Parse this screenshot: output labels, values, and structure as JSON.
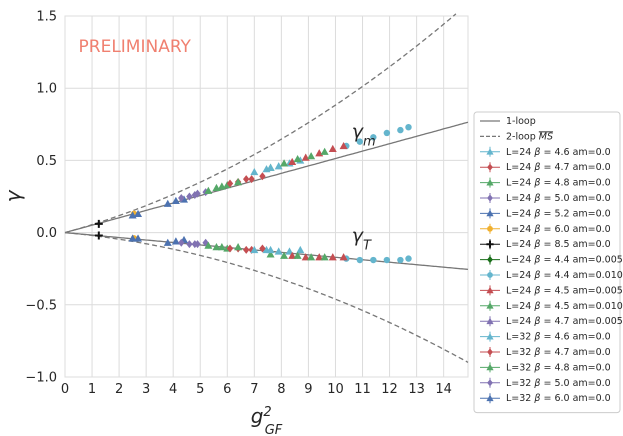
{
  "chart_data": {
    "type": "scatter",
    "title": "",
    "xlabel": "g²_GF",
    "ylabel": "γ",
    "xlim": [
      0,
      14.9
    ],
    "ylim": [
      -1.0,
      1.5
    ],
    "xticks": [
      "0",
      "1",
      "2",
      "3",
      "4",
      "5",
      "6",
      "7",
      "8",
      "9",
      "10",
      "11",
      "12",
      "13",
      "14"
    ],
    "yticks": [
      "1.5",
      "1.0",
      "0.5",
      "0.0",
      "−0.5",
      "−1.0"
    ],
    "grid": true,
    "legend_position": "right",
    "watermark": "PRELIMINARY",
    "annotations": [
      {
        "label_main": "γ",
        "label_sub": "m",
        "x": 10.6,
        "y": 0.66
      },
      {
        "label_main": "γ",
        "label_sub": "T",
        "x": 10.6,
        "y": -0.06
      }
    ],
    "reference_lines": [
      {
        "name": "1-loop",
        "style": "solid",
        "gamma_m_slope": 0.0513,
        "gamma_T_slope": -0.0171
      },
      {
        "name": "2-loop MS",
        "name_main": "2-loop ",
        "name_over": "MS",
        "style": "dashed",
        "gamma_m_quadratic": [
          0.0513,
          0.0037
        ],
        "gamma_T_quadratic": [
          -0.0171,
          -0.0029
        ]
      }
    ],
    "series": [
      {
        "name": "L=24 β = 4.6 am=0.0",
        "prefix": "L=24 ",
        "beta": "β",
        "suffix": " = 4.6 am=0.0",
        "color": "#64b5cd",
        "marker": "triangle",
        "m": [
          [
            7.45,
            0.44
          ],
          [
            7.9,
            0.46
          ],
          [
            8.3,
            0.48
          ],
          [
            8.7,
            0.5
          ]
        ],
        "T": [
          [
            7.45,
            -0.12
          ],
          [
            7.9,
            -0.13
          ],
          [
            8.3,
            -0.13
          ],
          [
            8.7,
            -0.12
          ]
        ]
      },
      {
        "name": "L=24 β = 4.7 am=0.0",
        "prefix": "L=24 ",
        "beta": "β",
        "suffix": " = 4.7 am=0.0",
        "color": "#c44e52",
        "marker": "diamond",
        "m": [
          [
            6.4,
            0.35
          ],
          [
            6.9,
            0.37
          ],
          [
            7.3,
            0.39
          ]
        ],
        "T": [
          [
            6.4,
            -0.11
          ],
          [
            6.9,
            -0.12
          ],
          [
            7.3,
            -0.11
          ]
        ]
      },
      {
        "name": "L=24 β = 4.8 am=0.0",
        "prefix": "L=24 ",
        "beta": "β",
        "suffix": " = 4.8 am=0.0",
        "color": "#55a868",
        "marker": "triangle",
        "m": [
          [
            5.6,
            0.31
          ],
          [
            6.0,
            0.33
          ],
          [
            6.4,
            0.35
          ]
        ],
        "T": [
          [
            5.6,
            -0.1
          ],
          [
            6.0,
            -0.11
          ],
          [
            6.4,
            -0.1
          ]
        ]
      },
      {
        "name": "L=24 β = 5.0 am=0.0",
        "prefix": "L=24 ",
        "beta": "β",
        "suffix": " = 5.0 am=0.0",
        "color": "#8172b2",
        "marker": "diamond",
        "m": [
          [
            4.6,
            0.25
          ],
          [
            4.9,
            0.27
          ],
          [
            5.2,
            0.28
          ]
        ],
        "T": [
          [
            4.6,
            -0.08
          ],
          [
            4.9,
            -0.08
          ],
          [
            5.2,
            -0.07
          ]
        ]
      },
      {
        "name": "L=24 β = 5.2 am=0.0",
        "prefix": "L=24 ",
        "beta": "β",
        "suffix": " = 5.2 am=0.0",
        "color": "#4c72b0",
        "marker": "triangle",
        "m": [
          [
            3.8,
            0.2
          ],
          [
            4.1,
            0.22
          ],
          [
            4.4,
            0.23
          ]
        ],
        "T": [
          [
            3.8,
            -0.07
          ],
          [
            4.1,
            -0.06
          ],
          [
            4.4,
            -0.05
          ]
        ]
      },
      {
        "name": "L=24 β = 6.0 am=0.0",
        "prefix": "L=24 ",
        "beta": "β",
        "suffix": " = 6.0 am=0.0",
        "color": "#f0b030",
        "marker": "circle",
        "m": [
          [
            2.55,
            0.13
          ]
        ],
        "T": [
          [
            2.55,
            -0.04
          ]
        ]
      },
      {
        "name": "L=24 β = 8.5 am=0.0",
        "prefix": "L=24 ",
        "beta": "β",
        "suffix": " = 8.5 am=0.0",
        "color": "#111111",
        "marker": "plus",
        "m": [
          [
            1.25,
            0.06
          ]
        ],
        "T": [
          [
            1.25,
            -0.02
          ]
        ]
      },
      {
        "name": "L=24 β = 4.4 am=0.005",
        "prefix": "L=24 ",
        "beta": "β",
        "suffix": " = 4.4 am=0.005",
        "color": "#1a6e1a",
        "marker": "diamond",
        "m": [],
        "T": []
      },
      {
        "name": "L=24 β = 4.4 am=0.010",
        "prefix": "L=24 ",
        "beta": "β",
        "suffix": " = 4.4 am=0.010",
        "color": "#64b5cd",
        "marker": "circle",
        "m": [
          [
            10.4,
            0.6
          ],
          [
            10.9,
            0.63
          ],
          [
            11.4,
            0.66
          ],
          [
            11.9,
            0.69
          ],
          [
            12.4,
            0.71
          ],
          [
            12.7,
            0.73
          ]
        ],
        "T": [
          [
            10.4,
            -0.18
          ],
          [
            10.9,
            -0.19
          ],
          [
            11.4,
            -0.19
          ],
          [
            11.9,
            -0.19
          ],
          [
            12.4,
            -0.19
          ],
          [
            12.7,
            -0.18
          ]
        ]
      },
      {
        "name": "L=24 β = 4.5 am=0.005",
        "prefix": "L=24 ",
        "beta": "β",
        "suffix": " = 4.5 am=0.005",
        "color": "#c44e52",
        "marker": "triangle",
        "m": [
          [
            8.4,
            0.49
          ],
          [
            8.9,
            0.52
          ],
          [
            9.4,
            0.55
          ],
          [
            9.9,
            0.58
          ],
          [
            10.3,
            0.6
          ]
        ],
        "T": [
          [
            8.4,
            -0.16
          ],
          [
            8.9,
            -0.17
          ],
          [
            9.4,
            -0.17
          ],
          [
            9.9,
            -0.17
          ],
          [
            10.3,
            -0.17
          ]
        ]
      },
      {
        "name": "L=24 β = 4.5 am=0.010",
        "prefix": "L=24 ",
        "beta": "β",
        "suffix": " = 4.5 am=0.010",
        "color": "#55a868",
        "marker": "triangle",
        "m": [
          [
            7.6,
            0.45
          ],
          [
            8.1,
            0.48
          ],
          [
            8.6,
            0.51
          ],
          [
            9.1,
            0.53
          ],
          [
            9.6,
            0.56
          ]
        ],
        "T": [
          [
            7.6,
            -0.15
          ],
          [
            8.1,
            -0.16
          ],
          [
            8.6,
            -0.16
          ],
          [
            9.1,
            -0.17
          ],
          [
            9.6,
            -0.17
          ]
        ]
      },
      {
        "name": "L=24 β = 4.7 am=0.005",
        "prefix": "L=24 ",
        "beta": "β",
        "suffix": " = 4.7 am=0.005",
        "color": "#8172b2",
        "marker": "triangle",
        "m": [],
        "T": []
      },
      {
        "name": "L=32 β = 4.6 am=0.0",
        "prefix": "L=32 ",
        "beta": "β",
        "suffix": " = 4.6 am=0.0",
        "color": "#64b5cd",
        "marker": "triangle",
        "m": [
          [
            7.0,
            0.42
          ],
          [
            7.6,
            0.45
          ]
        ],
        "T": [
          [
            7.0,
            -0.12
          ],
          [
            7.6,
            -0.12
          ]
        ]
      },
      {
        "name": "L=32 β = 4.7 am=0.0",
        "prefix": "L=32 ",
        "beta": "β",
        "suffix": " = 4.7 am=0.0",
        "color": "#c44e52",
        "marker": "diamond",
        "m": [
          [
            6.1,
            0.34
          ],
          [
            6.7,
            0.37
          ]
        ],
        "T": [
          [
            6.1,
            -0.11
          ],
          [
            6.7,
            -0.12
          ]
        ]
      },
      {
        "name": "L=32 β = 4.8 am=0.0",
        "prefix": "L=32 ",
        "beta": "β",
        "suffix": " = 4.8 am=0.0",
        "color": "#55a868",
        "marker": "triangle",
        "m": [
          [
            5.3,
            0.29
          ],
          [
            5.8,
            0.32
          ]
        ],
        "T": [
          [
            5.3,
            -0.09
          ],
          [
            5.8,
            -0.1
          ]
        ]
      },
      {
        "name": "L=32 β = 5.0 am=0.0",
        "prefix": "L=32 ",
        "beta": "β",
        "suffix": " = 5.0 am=0.0",
        "color": "#8172b2",
        "marker": "diamond",
        "m": [
          [
            4.3,
            0.24
          ],
          [
            4.8,
            0.26
          ]
        ],
        "T": [
          [
            4.3,
            -0.07
          ],
          [
            4.8,
            -0.08
          ]
        ]
      },
      {
        "name": "L=32 β = 6.0 am=0.0",
        "prefix": "L=32 ",
        "beta": "β",
        "suffix": " = 6.0 am=0.0",
        "color": "#4c72b0",
        "marker": "triangle",
        "m": [
          [
            2.5,
            0.12
          ],
          [
            2.7,
            0.13
          ]
        ],
        "T": [
          [
            2.5,
            -0.04
          ],
          [
            2.7,
            -0.04
          ]
        ]
      }
    ]
  }
}
